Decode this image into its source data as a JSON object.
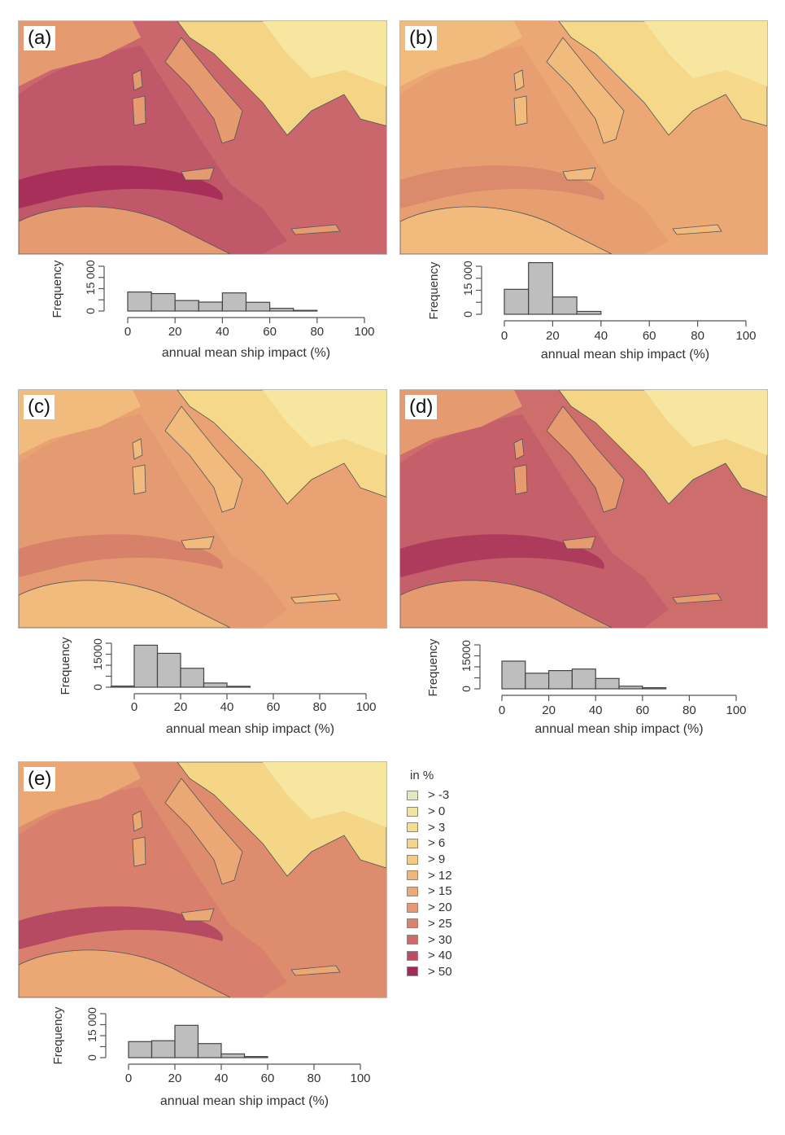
{
  "panels": [
    {
      "label": "(a)",
      "map_colors": {
        "sea": "#c9676c",
        "band": "#a82f5a",
        "inner": "#bd5268",
        "coast": "#e69a70",
        "land": "#f3d585",
        "land2": "#f7e6a0"
      }
    },
    {
      "label": "(b)",
      "map_colors": {
        "sea": "#eba774",
        "band": "#dc8a6c",
        "inner": "#e59a70",
        "coast": "#f0bb7c",
        "land": "#f5d88a",
        "land2": "#f7e6a0"
      }
    },
    {
      "label": "(c)",
      "map_colors": {
        "sea": "#e9a273",
        "band": "#d8816a",
        "inner": "#e39870",
        "coast": "#f0bb7c",
        "land": "#f5d88a",
        "land2": "#f7e6a0"
      }
    },
    {
      "label": "(d)",
      "map_colors": {
        "sea": "#cd6d6c",
        "band": "#ae3a5c",
        "inner": "#c25a68",
        "coast": "#e69a70",
        "land": "#f3d585",
        "land2": "#f7e6a0"
      }
    },
    {
      "label": "(e)",
      "map_colors": {
        "sea": "#de8c6e",
        "band": "#b64a62",
        "inner": "#d57a6c",
        "coast": "#eba774",
        "land": "#f4d686",
        "land2": "#f7e6a0"
      }
    }
  ],
  "chart_data": [
    {
      "type": "bar",
      "panel": "(a)",
      "bin_edges": [
        0,
        10,
        20,
        30,
        40,
        50,
        60,
        70,
        80
      ],
      "values": [
        8500,
        7800,
        4700,
        4000,
        8100,
        3900,
        1200,
        300
      ],
      "xlabel": "annual mean ship impact (%)",
      "ylabel": "Frequency",
      "xlim": [
        0,
        100
      ],
      "ylim": [
        0,
        20000
      ],
      "xticks": [
        "0",
        "20",
        "40",
        "60",
        "80",
        "100"
      ],
      "yticks": [
        "0",
        "15 000"
      ]
    },
    {
      "type": "bar",
      "panel": "(b)",
      "bin_edges": [
        0,
        10,
        20,
        30,
        40
      ],
      "values": [
        10400,
        21500,
        7200,
        1200
      ],
      "xlabel": "annual mean ship impact (%)",
      "ylabel": "Frequency",
      "xlim": [
        0,
        100
      ],
      "ylim": [
        0,
        20000
      ],
      "xticks": [
        "0",
        "20",
        "40",
        "60",
        "80",
        "100"
      ],
      "yticks": [
        "0",
        "15 000"
      ]
    },
    {
      "type": "bar",
      "panel": "(c)",
      "bin_edges": [
        -10,
        0,
        10,
        20,
        30,
        40,
        50
      ],
      "values": [
        500,
        19100,
        15400,
        8600,
        1900,
        400
      ],
      "xlabel": "annual mean ship impact (%)",
      "ylabel": "Frequency",
      "xlim": [
        0,
        100
      ],
      "ylim": [
        0,
        20000
      ],
      "xticks": [
        "0",
        "20",
        "40",
        "60",
        "80",
        "100"
      ],
      "yticks": [
        "0",
        "15000"
      ]
    },
    {
      "type": "bar",
      "panel": "(d)",
      "bin_edges": [
        0,
        10,
        20,
        30,
        40,
        50,
        60,
        70
      ],
      "values": [
        12600,
        7100,
        8300,
        9000,
        4700,
        1200,
        500
      ],
      "xlabel": "annual mean ship impact (%)",
      "ylabel": "Frequency",
      "xlim": [
        0,
        100
      ],
      "ylim": [
        0,
        20000
      ],
      "xticks": [
        "0",
        "20",
        "40",
        "60",
        "80",
        "100"
      ],
      "yticks": [
        "0",
        "15000"
      ]
    },
    {
      "type": "bar",
      "panel": "(e)",
      "bin_edges": [
        0,
        10,
        20,
        30,
        40,
        50,
        60
      ],
      "values": [
        7300,
        7700,
        14700,
        6400,
        1700,
        500
      ],
      "xlabel": "annual mean ship impact (%)",
      "ylabel": "Frequency",
      "xlim": [
        0,
        100
      ],
      "ylim": [
        0,
        20000
      ],
      "xticks": [
        "0",
        "20",
        "40",
        "60",
        "80",
        "100"
      ],
      "yticks": [
        "0",
        "15 000"
      ]
    }
  ],
  "legend": {
    "title": "in %",
    "items": [
      {
        "label": "> -3",
        "color": "#e6e6c0"
      },
      {
        "label": "> 0",
        "color": "#f2e49a"
      },
      {
        "label": "> 3",
        "color": "#f4dc92"
      },
      {
        "label": "> 6",
        "color": "#f6d588"
      },
      {
        "label": "> 9",
        "color": "#f5c97e"
      },
      {
        "label": "> 12",
        "color": "#f2b677"
      },
      {
        "label": "> 15",
        "color": "#eea872"
      },
      {
        "label": "> 20",
        "color": "#e8976e"
      },
      {
        "label": "> 25",
        "color": "#dd816b"
      },
      {
        "label": "> 30",
        "color": "#cf6a69"
      },
      {
        "label": "> 40",
        "color": "#bd4c63"
      },
      {
        "label": "> 50",
        "color": "#a32a58"
      }
    ]
  }
}
